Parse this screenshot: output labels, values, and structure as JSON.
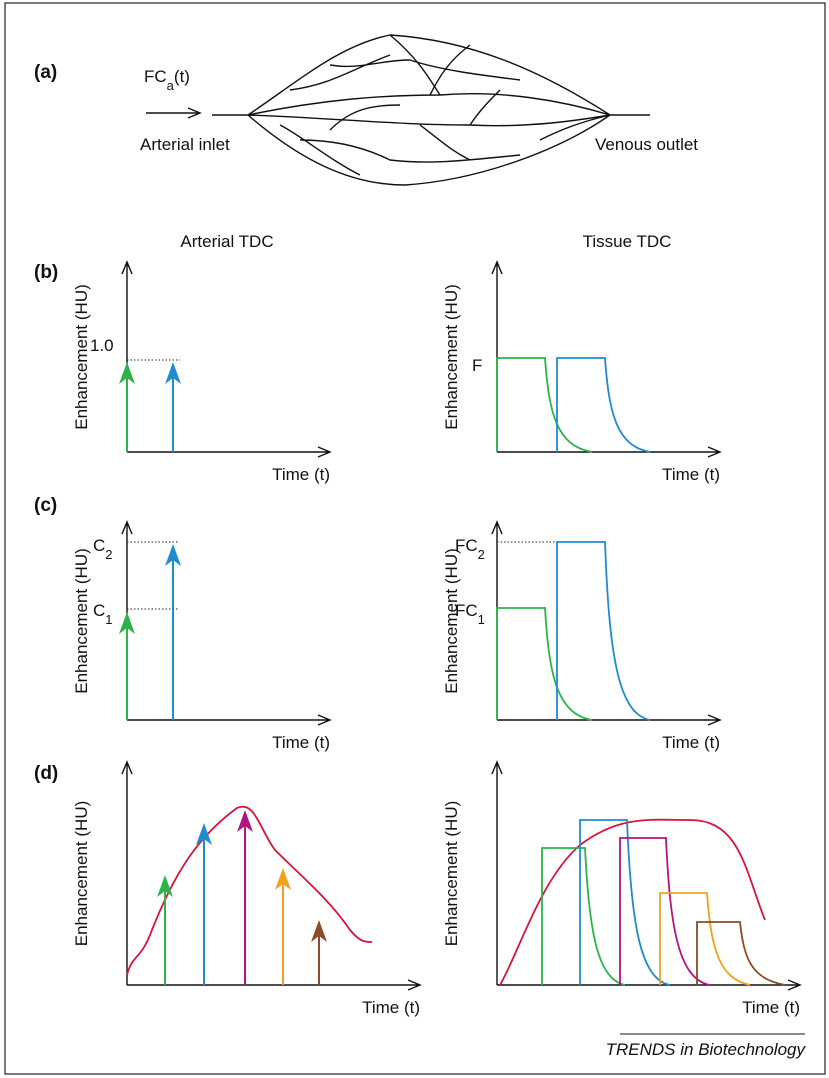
{
  "panel_a": {
    "label": "(a)",
    "input": {
      "base": "FC",
      "sub": "a",
      "suffix": "(t)"
    },
    "inlet": "Arterial inlet",
    "outlet": "Venous outlet"
  },
  "column_titles": [
    "Arterial TDC",
    "Tissue TDC"
  ],
  "panel_b": {
    "label": "(b)",
    "arterial": {
      "y_label": "Enhancement (HU)",
      "x_label": "Time (t)",
      "level": "1.0"
    },
    "tissue": {
      "y_label": "Enhancement (HU)",
      "x_label": "Time (t)",
      "level": "F"
    }
  },
  "panel_c": {
    "label": "(c)",
    "arterial": {
      "y_label": "Enhancement (HU)",
      "x_label": "Time (t)",
      "levels": [
        {
          "base": "C",
          "sub": "2"
        },
        {
          "base": "C",
          "sub": "1"
        }
      ]
    },
    "tissue": {
      "y_label": "Enhancement (HU)",
      "x_label": "Time (t)",
      "levels": [
        {
          "base": "FC",
          "sub": "2"
        },
        {
          "base": "FC",
          "sub": "1"
        }
      ]
    }
  },
  "panel_d": {
    "label": "(d)",
    "arterial": {
      "y_label": "Enhancement (HU)",
      "x_label": "Time (t)"
    },
    "tissue": {
      "y_label": "Enhancement (HU)",
      "x_label": "Time (t)"
    }
  },
  "footer": "TRENDS in Biotechnology"
}
